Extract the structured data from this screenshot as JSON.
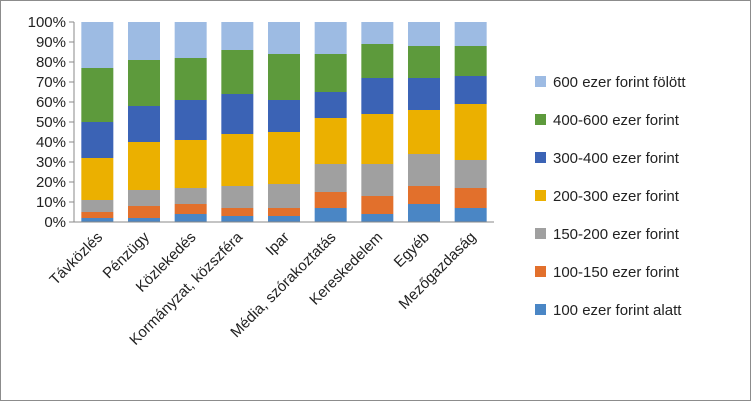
{
  "chart_data": {
    "type": "bar",
    "stacked": true,
    "percent": true,
    "title": "",
    "xlabel": "",
    "ylabel": "",
    "ylim": [
      0,
      100
    ],
    "yticks": [
      "0%",
      "10%",
      "20%",
      "30%",
      "40%",
      "50%",
      "60%",
      "70%",
      "80%",
      "90%",
      "100%"
    ],
    "grid": false,
    "legend_position": "right",
    "categories": [
      "Távközlés",
      "Pénzügy",
      "Közlekedés",
      "Kormányzat, közszféra",
      "Ipar",
      "Média, szórakoztatás",
      "Kereskedelem",
      "Egyéb",
      "Mezőgazdaság"
    ],
    "series": [
      {
        "name": "100 ezer forint alatt",
        "color": "#4a86c5",
        "values": [
          2,
          2,
          4,
          3,
          3,
          7,
          4,
          9,
          7
        ]
      },
      {
        "name": "100-150 ezer forint",
        "color": "#e2702c",
        "values": [
          3,
          6,
          5,
          4,
          4,
          8,
          9,
          9,
          10
        ]
      },
      {
        "name": "150-200 ezer forint",
        "color": "#a0a0a0",
        "values": [
          6,
          8,
          8,
          11,
          12,
          14,
          16,
          16,
          14
        ]
      },
      {
        "name": "200-300 ezer forint",
        "color": "#ebb000",
        "values": [
          21,
          24,
          24,
          26,
          26,
          23,
          25,
          22,
          28
        ]
      },
      {
        "name": "300-400 ezer forint",
        "color": "#3b63b5",
        "values": [
          18,
          18,
          20,
          20,
          16,
          13,
          18,
          16,
          14
        ]
      },
      {
        "name": "400-600 ezer forint",
        "color": "#5d9a3c",
        "values": [
          27,
          23,
          21,
          22,
          23,
          19,
          17,
          16,
          15
        ]
      },
      {
        "name": "600 ezer forint fölött",
        "color": "#9dbbe3",
        "values": [
          23,
          19,
          18,
          14,
          16,
          16,
          11,
          12,
          12
        ]
      }
    ]
  }
}
